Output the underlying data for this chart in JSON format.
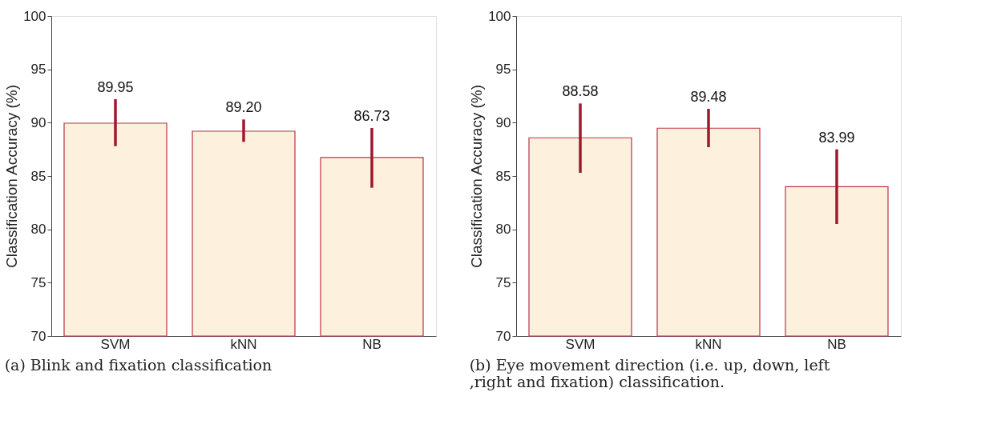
{
  "chart_data": [
    {
      "type": "bar",
      "categories": [
        "SVM",
        "kNN",
        "NB"
      ],
      "values": [
        89.95,
        89.2,
        86.73
      ],
      "color": "#fdf0dc",
      "errors": [
        [
          87.8,
          92.2
        ],
        [
          88.2,
          90.3
        ],
        [
          83.9,
          89.5
        ]
      ],
      "value_labels": [
        "89.95",
        "89.20",
        "86.73"
      ],
      "ylabel": "Classification Accuracy (%)",
      "ylim": [
        70,
        100
      ],
      "yticks": [
        70,
        75,
        80,
        85,
        90,
        95,
        100
      ],
      "grid": false,
      "annotations": [
        "(a) Blink and fixation classification"
      ]
    },
    {
      "type": "bar",
      "categories": [
        "SVM",
        "kNN",
        "NB"
      ],
      "values": [
        88.58,
        89.48,
        83.99
      ],
      "color": "#fdf0dc",
      "errors": [
        [
          85.3,
          91.8
        ],
        [
          87.7,
          91.3
        ],
        [
          80.5,
          87.5
        ]
      ],
      "value_labels": [
        "88.58",
        "89.48",
        "83.99"
      ],
      "ylabel": "Classification Accuracy (%)",
      "ylim": [
        70,
        100
      ],
      "yticks": [
        70,
        75,
        80,
        85,
        90,
        95,
        100
      ],
      "grid": false,
      "annotations": [
        "(b) Eye movement direction (i.e. up, down, left ,right and fixation) classification."
      ]
    }
  ]
}
